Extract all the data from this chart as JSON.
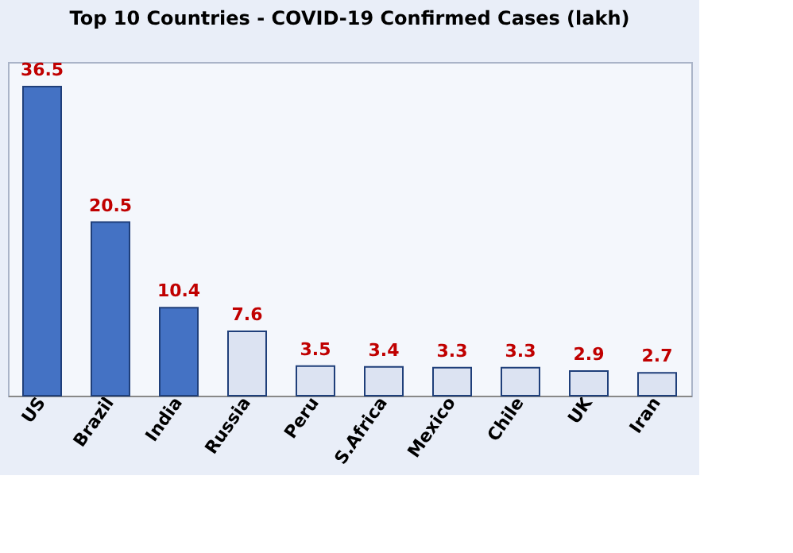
{
  "chart_data": {
    "type": "bar",
    "title": "Top 10 Countries - COVID-19 Confirmed Cases (lakh)",
    "categories": [
      "US",
      "Brazil",
      "India",
      "Russia",
      "Peru",
      "S.Africa",
      "Mexico",
      "Chile",
      "UK",
      "Iran"
    ],
    "values": [
      36.5,
      20.5,
      10.4,
      7.6,
      3.5,
      3.4,
      3.3,
      3.3,
      2.9,
      2.7
    ],
    "colors": [
      "#4472c4",
      "#4472c4",
      "#4472c4",
      "#dce3f2",
      "#dce3f2",
      "#dce3f2",
      "#dce3f2",
      "#dce3f2",
      "#dce3f2",
      "#dce3f2"
    ],
    "data_labels": true
  }
}
